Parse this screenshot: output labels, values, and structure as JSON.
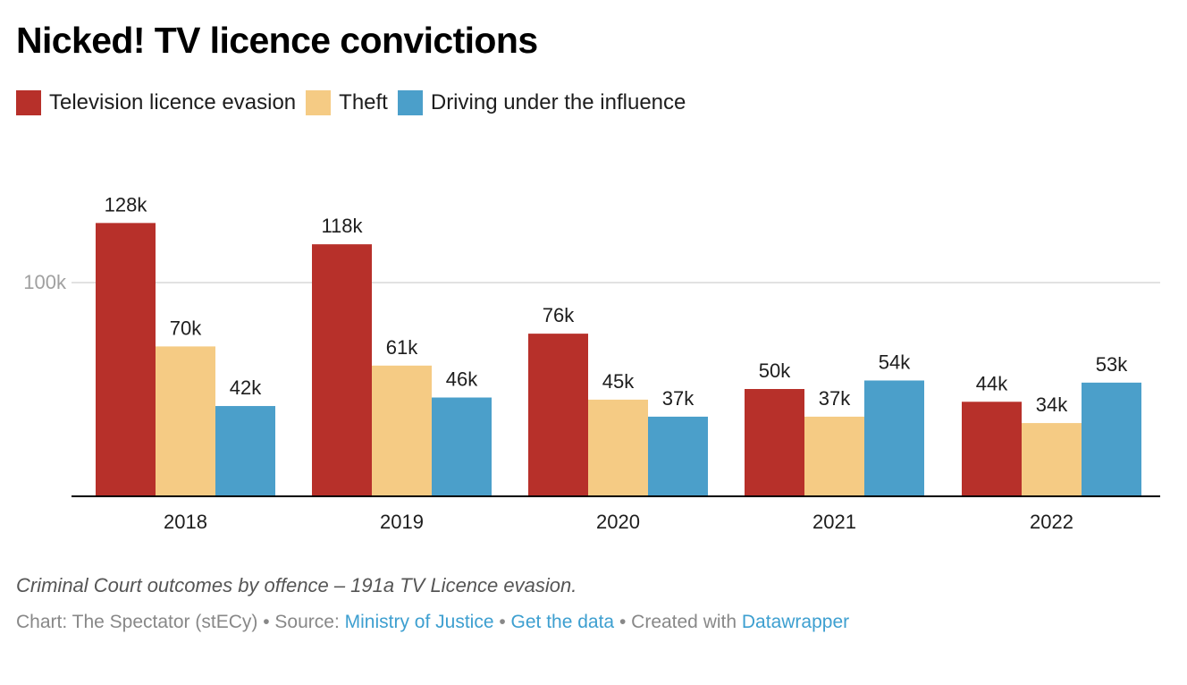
{
  "title": "Nicked! TV licence convictions",
  "legend": [
    {
      "label": "Television licence evasion",
      "color": "#b7302a"
    },
    {
      "label": "Theft",
      "color": "#f5cb84"
    },
    {
      "label": "Driving under the influence",
      "color": "#4b9fca"
    }
  ],
  "chart_data": {
    "type": "bar",
    "title": "Nicked! TV licence convictions",
    "xlabel": "",
    "ylabel": "",
    "categories": [
      "2018",
      "2019",
      "2020",
      "2021",
      "2022"
    ],
    "series": [
      {
        "name": "Television licence evasion",
        "color": "#b7302a",
        "values": [
          128,
          118,
          76,
          50,
          44
        ],
        "labels": [
          "128k",
          "118k",
          "76k",
          "50k",
          "44k"
        ]
      },
      {
        "name": "Theft",
        "color": "#f5cb84",
        "values": [
          70,
          61,
          45,
          37,
          34
        ],
        "labels": [
          "70k",
          "61k",
          "45k",
          "37k",
          "34k"
        ]
      },
      {
        "name": "Driving under the influence",
        "color": "#4b9fca",
        "values": [
          42,
          46,
          37,
          54,
          53
        ],
        "labels": [
          "42k",
          "46k",
          "37k",
          "54k",
          "53k"
        ]
      }
    ],
    "units": "thousands",
    "yticks": [
      {
        "value": 100,
        "label": "100k"
      }
    ],
    "ylim": [
      0,
      140
    ],
    "grid": true,
    "legend_position": "top-left"
  },
  "notes": "Criminal Court outcomes by offence – 191a TV Licence evasion.",
  "footer": {
    "chart_credit": "Chart: The Spectator (stECy)",
    "separator": " • ",
    "source_label": "Source: ",
    "source_link": "Ministry of Justice",
    "get_data_link": "Get the data",
    "created_with_label": "Created with ",
    "datawrapper_link": "Datawrapper"
  }
}
